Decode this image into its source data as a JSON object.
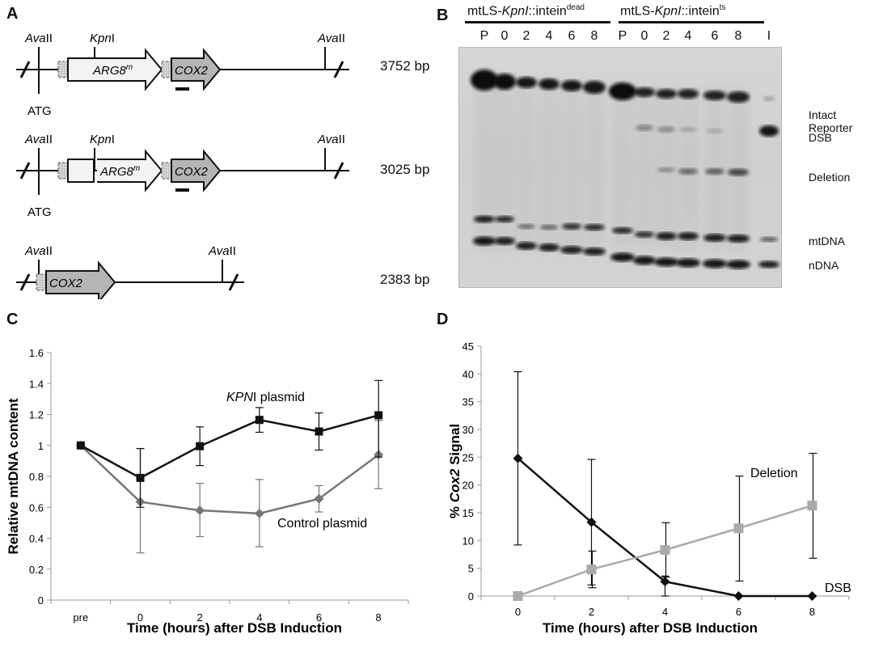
{
  "panelA": {
    "letter": "A",
    "constructs": [
      {
        "size": "3752 bp",
        "site_left": "AvaII",
        "site_kpn": "KpnI",
        "site_right": "AvaII",
        "gene1": "ARG8",
        "gene1_sup": "m",
        "gene2": "COX2",
        "atg": "ATG"
      },
      {
        "size": "3025 bp",
        "site_left": "AvaII",
        "site_kpn": "KpnI",
        "site_right": "AvaII",
        "gene1": "ARG8",
        "gene1_sup": "m",
        "gene2": "COX2",
        "atg": "ATG"
      },
      {
        "size": "2383 bp",
        "site_left": "AvaII",
        "site_right": "AvaII",
        "gene2": "COX2"
      }
    ]
  },
  "panelB": {
    "letter": "B",
    "group1": {
      "prefix": "mtLS-",
      "italic": "KpnI",
      "suffix": "::intein",
      "sup": "dead"
    },
    "group2": {
      "prefix": "mtLS-",
      "italic": "KpnI",
      "suffix": "::intein",
      "sup": "ts"
    },
    "lanes": [
      "P",
      "0",
      "2",
      "4",
      "6",
      "8",
      "P",
      "0",
      "2",
      "4",
      "6",
      "8",
      "I"
    ],
    "band_labels": [
      "Intact",
      "Reporter",
      "DSB",
      "Deletion",
      "mtDNA",
      "nDNA"
    ]
  },
  "panelC": {
    "letter": "C",
    "chart_data": {
      "type": "line",
      "categories": [
        "pre",
        "0",
        "2",
        "4",
        "6",
        "8"
      ],
      "xlabel": "Time (hours) after DSB Induction",
      "ylabel": "Relative mtDNA content",
      "ylim": [
        0,
        1.6
      ],
      "yticks": [
        "0",
        "0.2",
        "0.4",
        "0.6",
        "0.8",
        "1",
        "1.2",
        "1.4",
        "1.6"
      ],
      "series": [
        {
          "name": "KPNI plasmid",
          "label_italic": "KPN",
          "label_rest": "I plasmid",
          "color": "#111111",
          "values": [
            1.0,
            0.79,
            0.995,
            1.165,
            1.09,
            1.195
          ],
          "err_low": [
            0.0,
            0.19,
            0.125,
            0.08,
            0.12,
            0.27
          ],
          "err_high": [
            0.0,
            0.19,
            0.125,
            0.08,
            0.12,
            0.225
          ]
        },
        {
          "name": "Control plasmid",
          "color": "#777777",
          "values": [
            1.0,
            0.635,
            0.58,
            0.56,
            0.655,
            0.94
          ],
          "err_low": [
            0.0,
            0.33,
            0.17,
            0.215,
            0.085,
            0.22
          ],
          "err_high": [
            0.0,
            0.345,
            0.175,
            0.22,
            0.085,
            0.22
          ]
        }
      ]
    }
  },
  "panelD": {
    "letter": "D",
    "chart_data": {
      "type": "line",
      "x": [
        0,
        2,
        4,
        6,
        8
      ],
      "xticks": [
        "0",
        "2",
        "4",
        "6",
        "8"
      ],
      "xlabel": "Time (hours) after DSB Induction",
      "ylabel_prefix": "% ",
      "ylabel_italic": "Cox2",
      "ylabel_suffix": " Signal",
      "ylim": [
        0,
        45
      ],
      "yticks": [
        "0",
        "5",
        "10",
        "15",
        "20",
        "25",
        "30",
        "35",
        "40",
        "45"
      ],
      "series": [
        {
          "name": "DSB",
          "color": "#111111",
          "values": [
            24.8,
            13.3,
            2.6,
            0.0,
            0.0
          ],
          "err_low": [
            15.6,
            11.3,
            2.6,
            0,
            0
          ],
          "err_high": [
            15.6,
            11.3,
            1.0,
            0,
            0
          ]
        },
        {
          "name": "Deletion",
          "color": "#aaaaaa",
          "values": [
            0.0,
            4.8,
            8.3,
            12.2,
            16.3
          ],
          "err_low": [
            0,
            3.3,
            4.9,
            9.5,
            9.5
          ],
          "err_high": [
            0,
            3.3,
            4.9,
            9.4,
            9.4
          ]
        }
      ]
    }
  }
}
